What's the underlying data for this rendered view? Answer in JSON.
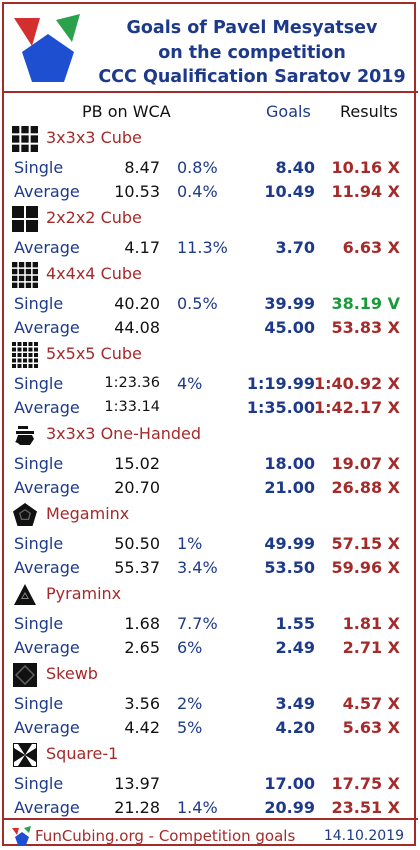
{
  "header": {
    "title_line1": "Goals of Pavel Mesyatsev",
    "title_line2": "on the competition",
    "title_line3": "CCC Qualification Saratov 2019"
  },
  "columns": {
    "pb": "PB on WCA",
    "goals": "Goals",
    "results": "Results"
  },
  "colors": {
    "accent": "#a52a2a",
    "blue": "#1d3a8a",
    "green": "#1a9a3a"
  },
  "events": [
    {
      "name": "3x3x3 Cube",
      "icon": "cube-3x3-icon",
      "rows": [
        {
          "label": "Single",
          "pb": "8.47",
          "pct": "0.8%",
          "goal": "8.40",
          "result": "10.16 X",
          "status": "fail"
        },
        {
          "label": "Average",
          "pb": "10.53",
          "pct": "0.4%",
          "goal": "10.49",
          "result": "11.94 X",
          "status": "fail"
        }
      ]
    },
    {
      "name": "2x2x2 Cube",
      "icon": "cube-2x2-icon",
      "rows": [
        {
          "label": "Average",
          "pb": "4.17",
          "pct": "11.3%",
          "goal": "3.70",
          "result": "6.63 X",
          "status": "fail"
        }
      ]
    },
    {
      "name": "4x4x4 Cube",
      "icon": "cube-4x4-icon",
      "rows": [
        {
          "label": "Single",
          "pb": "40.20",
          "pct": "0.5%",
          "goal": "39.99",
          "result": "38.19 V",
          "status": "pass"
        },
        {
          "label": "Average",
          "pb": "44.08",
          "pct": "",
          "goal": "45.00",
          "result": "53.83 X",
          "status": "fail"
        }
      ]
    },
    {
      "name": "5x5x5 Cube",
      "icon": "cube-5x5-icon",
      "rows": [
        {
          "label": "Single",
          "pb": "1:23.36",
          "pct": "4%",
          "goal": "1:19.99",
          "result": "1:40.92 X",
          "status": "fail"
        },
        {
          "label": "Average",
          "pb": "1:33.14",
          "pct": "",
          "goal": "1:35.00",
          "result": "1:42.17 X",
          "status": "fail"
        }
      ]
    },
    {
      "name": "3x3x3 One-Handed",
      "icon": "one-handed-icon",
      "rows": [
        {
          "label": "Single",
          "pb": "15.02",
          "pct": "",
          "goal": "18.00",
          "result": "19.07 X",
          "status": "fail"
        },
        {
          "label": "Average",
          "pb": "20.70",
          "pct": "",
          "goal": "21.00",
          "result": "26.88 X",
          "status": "fail"
        }
      ]
    },
    {
      "name": "Megaminx",
      "icon": "megaminx-icon",
      "rows": [
        {
          "label": "Single",
          "pb": "50.50",
          "pct": "1%",
          "goal": "49.99",
          "result": "57.15 X",
          "status": "fail"
        },
        {
          "label": "Average",
          "pb": "55.37",
          "pct": "3.4%",
          "goal": "53.50",
          "result": "59.96 X",
          "status": "fail"
        }
      ]
    },
    {
      "name": "Pyraminx",
      "icon": "pyraminx-icon",
      "rows": [
        {
          "label": "Single",
          "pb": "1.68",
          "pct": "7.7%",
          "goal": "1.55",
          "result": "1.81 X",
          "status": "fail"
        },
        {
          "label": "Average",
          "pb": "2.65",
          "pct": "6%",
          "goal": "2.49",
          "result": "2.71 X",
          "status": "fail"
        }
      ]
    },
    {
      "name": "Skewb",
      "icon": "skewb-icon",
      "rows": [
        {
          "label": "Single",
          "pb": "3.56",
          "pct": "2%",
          "goal": "3.49",
          "result": "4.57 X",
          "status": "fail"
        },
        {
          "label": "Average",
          "pb": "4.42",
          "pct": "5%",
          "goal": "4.20",
          "result": "5.63 X",
          "status": "fail"
        }
      ]
    },
    {
      "name": "Square-1",
      "icon": "square-1-icon",
      "rows": [
        {
          "label": "Single",
          "pb": "13.97",
          "pct": "",
          "goal": "17.00",
          "result": "17.75 X",
          "status": "fail"
        },
        {
          "label": "Average",
          "pb": "21.28",
          "pct": "1.4%",
          "goal": "20.99",
          "result": "23.51 X",
          "status": "fail"
        }
      ]
    }
  ],
  "footer": {
    "site": "FunCubing.org - Competition goals",
    "date": "14.10.2019"
  }
}
